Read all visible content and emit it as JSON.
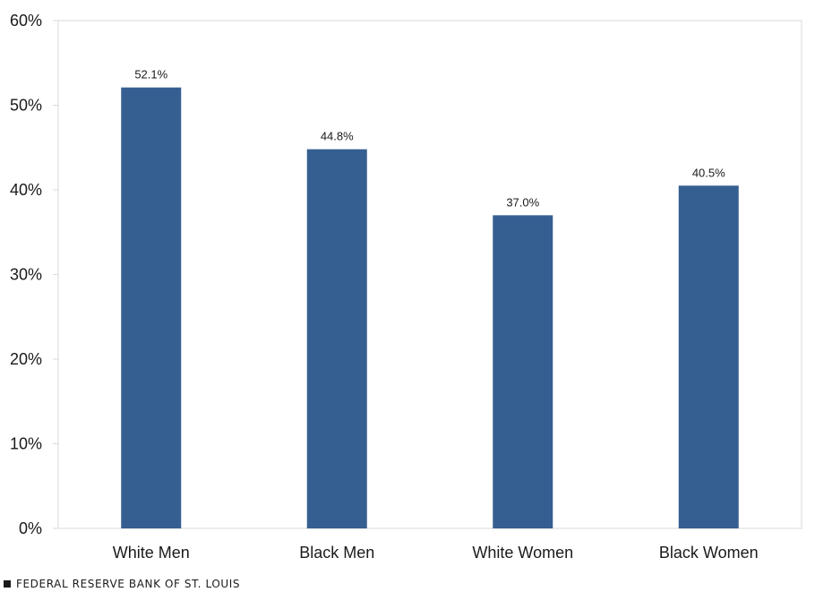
{
  "chart_data": {
    "type": "bar",
    "categories": [
      "White Men",
      "Black Men",
      "White Women",
      "Black Women"
    ],
    "values": [
      52.1,
      44.8,
      37.0,
      40.5
    ],
    "data_labels": [
      "52.1%",
      "44.8%",
      "37.0%",
      "40.5%"
    ],
    "title": "",
    "xlabel": "",
    "ylabel": "",
    "ylim": [
      0,
      60
    ],
    "yticks": [
      0,
      10,
      20,
      30,
      40,
      50,
      60
    ],
    "ytick_labels": [
      "0%",
      "10%",
      "20%",
      "30%",
      "40%",
      "50%",
      "60%"
    ],
    "bar_color": "#365f91",
    "grid": false,
    "legend": "none"
  },
  "footer": {
    "text": "FEDERAL RESERVE BANK OF ST. LOUIS"
  }
}
